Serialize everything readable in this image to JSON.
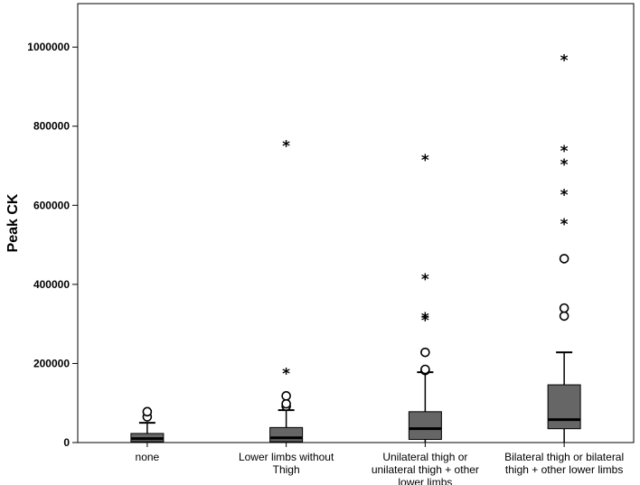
{
  "chart_data": {
    "type": "box",
    "title": "",
    "xlabel": "",
    "ylabel": "Peak CK",
    "ylim": [
      0,
      1110000
    ],
    "yticks": [
      0,
      200000,
      400000,
      600000,
      800000,
      1000000
    ],
    "ytick_labels": [
      "0",
      "200000",
      "400000",
      "600000",
      "800000",
      "1000000"
    ],
    "grid": false,
    "box_color": "#666666",
    "categories": [
      {
        "label": [
          "none"
        ],
        "q1": 2000,
        "median": 10000,
        "q3": 23000,
        "whisker_low": 0,
        "whisker_high": 50000,
        "outliers": [
          65000,
          78000
        ],
        "extremes": []
      },
      {
        "label": [
          "Lower limbs without",
          "Thigh"
        ],
        "q1": 2000,
        "median": 12000,
        "q3": 38000,
        "whisker_low": 0,
        "whisker_high": 82000,
        "outliers": [
          92000,
          98000,
          118000
        ],
        "extremes": [
          175000,
          750000
        ]
      },
      {
        "label": [
          "Unilateral thigh or",
          "unilateral thigh + other",
          "lower limbs"
        ],
        "q1": 8000,
        "median": 35000,
        "q3": 78000,
        "whisker_low": 0,
        "whisker_high": 178000,
        "outliers": [
          182000,
          185000,
          228000
        ],
        "extremes": [
          310000,
          315000,
          413000,
          715000
        ]
      },
      {
        "label": [
          "Bilateral thigh or bilateral",
          "thigh + other lower limbs"
        ],
        "q1": 35000,
        "median": 58000,
        "q3": 146000,
        "whisker_low": 0,
        "whisker_high": 228000,
        "outliers": [
          320000,
          340000,
          465000
        ],
        "extremes": [
          553000,
          627000,
          703000,
          738000,
          967000
        ]
      }
    ]
  }
}
